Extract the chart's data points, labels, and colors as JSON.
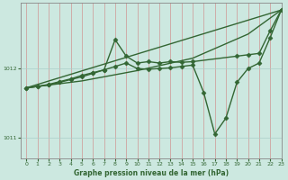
{
  "bg_color": "#cce8e0",
  "grid_color": "#aacfc8",
  "line_color": "#336633",
  "title": "Graphe pression niveau de la mer (hPa)",
  "xlim": [
    -0.5,
    23
  ],
  "ylim": [
    1010.7,
    1012.95
  ],
  "yticks": [
    1011,
    1012
  ],
  "xticks": [
    0,
    1,
    2,
    3,
    4,
    5,
    6,
    7,
    8,
    9,
    10,
    11,
    12,
    13,
    14,
    15,
    16,
    17,
    18,
    19,
    20,
    21,
    22,
    23
  ],
  "series": [
    {
      "x": [
        0,
        23
      ],
      "y": [
        1011.72,
        1012.85
      ],
      "marker": null,
      "linewidth": 1.0
    },
    {
      "x": [
        0,
        5,
        10,
        15,
        20,
        23
      ],
      "y": [
        1011.72,
        1011.82,
        1011.97,
        1012.15,
        1012.5,
        1012.85
      ],
      "marker": null,
      "linewidth": 1.0
    },
    {
      "x": [
        0,
        1,
        2,
        3,
        4,
        5,
        6,
        7,
        8,
        9,
        10,
        11,
        12,
        13,
        14,
        15,
        19,
        20,
        21,
        22,
        23
      ],
      "y": [
        1011.72,
        1011.74,
        1011.76,
        1011.8,
        1011.84,
        1011.88,
        1011.93,
        1011.98,
        1012.42,
        1012.18,
        1012.08,
        1012.1,
        1012.08,
        1012.1,
        1012.09,
        1012.1,
        1012.18,
        1012.2,
        1012.22,
        1012.55,
        1012.85
      ],
      "marker": "D",
      "markersize": 2.5,
      "linewidth": 1.0
    },
    {
      "x": [
        0,
        1,
        2,
        3,
        4,
        5,
        6,
        7,
        8,
        9,
        10,
        11,
        12,
        13,
        14,
        15,
        16,
        17,
        18,
        19,
        20,
        21,
        22,
        23
      ],
      "y": [
        1011.72,
        1011.74,
        1011.77,
        1011.81,
        1011.85,
        1011.9,
        1011.94,
        1011.98,
        1012.03,
        1012.08,
        1012.0,
        1011.99,
        1012.0,
        1012.01,
        1012.03,
        1012.05,
        1011.65,
        1011.05,
        1011.28,
        1011.8,
        1012.0,
        1012.08,
        1012.45,
        1012.85
      ],
      "marker": "D",
      "markersize": 2.5,
      "linewidth": 1.0
    }
  ]
}
